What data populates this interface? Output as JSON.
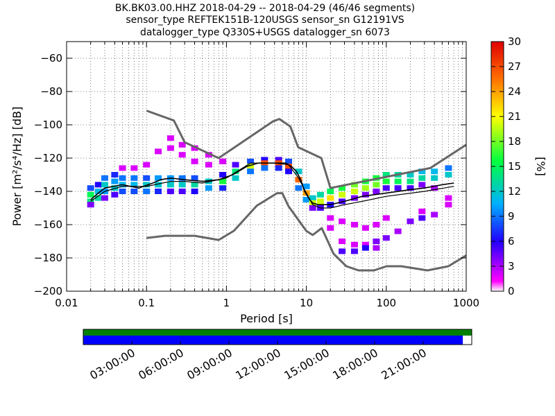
{
  "title": {
    "line1": "BK.BK03.00.HHZ   2018-04-29 -- 2018-04-29  (46/46 segments)",
    "line2": "sensor_type REFTEK151B-120USGS sensor_sn G12191VS",
    "line3": "datalogger_type Q330S+USGS datalogger_sn 6073"
  },
  "chart_data": {
    "type": "heatmap",
    "xlabel": "Period [s]",
    "ylabel": "Power [m²/s⁴/Hz] [dB]",
    "x_scale": "log",
    "xlim": [
      0.01,
      1000
    ],
    "ylim": [
      -200,
      -50
    ],
    "x_ticks": [
      "0.01",
      "0.1",
      "1",
      "10",
      "100",
      "1000"
    ],
    "y_ticks": [
      "−60",
      "−80",
      "−100",
      "−120",
      "−140",
      "−160",
      "−180",
      "−200"
    ],
    "y_tick_values": [
      -60,
      -80,
      -100,
      -120,
      -140,
      -160,
      -180,
      -200
    ],
    "colorbar": {
      "label": "[%]",
      "range": [
        0,
        30
      ],
      "ticks": [
        "0",
        "3",
        "6",
        "9",
        "12",
        "15",
        "18",
        "21",
        "24",
        "27",
        "30"
      ]
    },
    "noise_model_high": {
      "period": [
        0.1,
        0.22,
        0.3,
        0.8,
        3.8,
        4.6,
        6.3,
        7.9,
        15.4,
        20,
        354.8,
        1000
      ],
      "power": [
        -91.5,
        -97.4,
        -110.5,
        -120,
        -98,
        -96.5,
        -101,
        -113.5,
        -120,
        -138,
        -126,
        -112
      ]
    },
    "noise_model_low": {
      "period": [
        0.1,
        0.17,
        0.4,
        0.8,
        1.24,
        2.4,
        4.3,
        5,
        6,
        10,
        12,
        15.6,
        21.9,
        31.6,
        45,
        70,
        101,
        154,
        328,
        600,
        1000
      ],
      "power": [
        -168,
        -166.7,
        -166.7,
        -169.2,
        -163.7,
        -148.6,
        -141.1,
        -141.1,
        -149,
        -163.8,
        -166.2,
        -162.1,
        -177.5,
        -185,
        -187.5,
        -187.5,
        -185,
        -185,
        -187.5,
        -185,
        -178.5
      ]
    },
    "median": {
      "period": [
        0.02,
        0.025,
        0.03,
        0.05,
        0.08,
        0.12,
        0.15,
        0.2,
        0.3,
        0.5,
        0.8,
        1.2,
        1.8,
        2.5,
        3.5,
        4.5,
        5.5,
        6.5,
        7.5,
        8.5,
        9.5,
        11,
        12,
        14,
        16,
        20,
        30,
        50,
        100,
        200,
        300,
        500,
        700
      ],
      "power": [
        -145,
        -141,
        -138,
        -136,
        -138,
        -135,
        -133,
        -132,
        -133,
        -134,
        -133,
        -130,
        -125,
        -123,
        -123,
        -123,
        -123,
        -125,
        -128,
        -133,
        -140,
        -145,
        -147,
        -148,
        -148,
        -148,
        -146,
        -143,
        -141,
        -139,
        -138,
        -136,
        -135
      ]
    },
    "mean": {
      "period": [
        0.02,
        0.03,
        0.05,
        0.1,
        0.2,
        0.3,
        0.5,
        1,
        2,
        4,
        6,
        8,
        10,
        12,
        15,
        20,
        30,
        50,
        100,
        300,
        700
      ],
      "power": [
        -146,
        -140,
        -137,
        -137,
        -134,
        -134,
        -135,
        -132,
        -123,
        -123,
        -124,
        -132,
        -141,
        -148,
        -150,
        -150,
        -148,
        -146,
        -143,
        -140,
        -137
      ]
    },
    "pdf_cells": [
      {
        "period": 0.02,
        "power": [
          [
            -138,
            8
          ],
          [
            -142,
            15
          ],
          [
            -146,
            14
          ],
          [
            -148,
            4
          ]
        ]
      },
      {
        "period": 0.025,
        "power": [
          [
            -136,
            6
          ],
          [
            -140,
            11
          ],
          [
            -144,
            13
          ]
        ]
      },
      {
        "period": 0.03,
        "power": [
          [
            -132,
            9
          ],
          [
            -136,
            12
          ],
          [
            -140,
            10
          ],
          [
            -144,
            4
          ]
        ]
      },
      {
        "period": 0.04,
        "power": [
          [
            -130,
            7
          ],
          [
            -134,
            10
          ],
          [
            -138,
            12
          ],
          [
            -142,
            5
          ]
        ]
      },
      {
        "period": 0.05,
        "power": [
          [
            -126,
            2
          ],
          [
            -132,
            9
          ],
          [
            -136,
            11
          ],
          [
            -140,
            8
          ]
        ]
      },
      {
        "period": 0.07,
        "power": [
          [
            -126,
            2
          ],
          [
            -132,
            9
          ],
          [
            -136,
            11
          ],
          [
            -140,
            8
          ]
        ]
      },
      {
        "period": 0.1,
        "power": [
          [
            -124,
            2
          ],
          [
            -132,
            8
          ],
          [
            -136,
            12
          ],
          [
            -140,
            9
          ]
        ]
      },
      {
        "period": 0.14,
        "power": [
          [
            -116,
            2
          ],
          [
            -132,
            10
          ],
          [
            -136,
            12
          ],
          [
            -140,
            7
          ]
        ]
      },
      {
        "period": 0.2,
        "power": [
          [
            -108,
            2
          ],
          [
            -114,
            2
          ],
          [
            -132,
            10
          ],
          [
            -136,
            12
          ],
          [
            -140,
            5
          ]
        ]
      },
      {
        "period": 0.28,
        "power": [
          [
            -112,
            2
          ],
          [
            -118,
            2
          ],
          [
            -132,
            9
          ],
          [
            -136,
            12
          ],
          [
            -140,
            5
          ]
        ]
      },
      {
        "period": 0.4,
        "power": [
          [
            -114,
            2
          ],
          [
            -122,
            2
          ],
          [
            -132,
            8
          ],
          [
            -136,
            13
          ],
          [
            -140,
            6
          ]
        ]
      },
      {
        "period": 0.6,
        "power": [
          [
            -118,
            2
          ],
          [
            -124,
            2
          ],
          [
            -134,
            12
          ],
          [
            -138,
            10
          ]
        ]
      },
      {
        "period": 0.9,
        "power": [
          [
            -122,
            2
          ],
          [
            -130,
            6
          ],
          [
            -134,
            16
          ],
          [
            -138,
            7
          ]
        ]
      },
      {
        "period": 1.3,
        "power": [
          [
            -124,
            5
          ],
          [
            -128,
            14
          ],
          [
            -132,
            12
          ]
        ]
      },
      {
        "period": 2,
        "power": [
          [
            -122,
            8
          ],
          [
            -125,
            20
          ],
          [
            -128,
            9
          ]
        ]
      },
      {
        "period": 3,
        "power": [
          [
            -121,
            6
          ],
          [
            -123,
            27
          ],
          [
            -126,
            9
          ]
        ]
      },
      {
        "period": 4.5,
        "power": [
          [
            -121,
            5
          ],
          [
            -123,
            27
          ],
          [
            -126,
            7
          ]
        ]
      },
      {
        "period": 6,
        "power": [
          [
            -122,
            8
          ],
          [
            -125,
            27
          ],
          [
            -128,
            6
          ]
        ]
      },
      {
        "period": 8,
        "power": [
          [
            -128,
            12
          ],
          [
            -133,
            26
          ],
          [
            -138,
            9
          ]
        ]
      },
      {
        "period": 10,
        "power": [
          [
            -137,
            10
          ],
          [
            -141,
            24
          ],
          [
            -145,
            10
          ]
        ]
      },
      {
        "period": 12,
        "power": [
          [
            -144,
            12
          ],
          [
            -147,
            20
          ],
          [
            -150,
            4
          ]
        ]
      },
      {
        "period": 15,
        "power": [
          [
            -142,
            13
          ],
          [
            -146,
            20
          ],
          [
            -150,
            5
          ]
        ]
      },
      {
        "period": 20,
        "power": [
          [
            -140,
            15
          ],
          [
            -144,
            22
          ],
          [
            -148,
            6
          ],
          [
            -156,
            2
          ],
          [
            -162,
            2
          ]
        ]
      },
      {
        "period": 28,
        "power": [
          [
            -138,
            16
          ],
          [
            -142,
            20
          ],
          [
            -146,
            5
          ],
          [
            -158,
            2
          ],
          [
            -170,
            2
          ],
          [
            -176,
            5
          ]
        ]
      },
      {
        "period": 40,
        "power": [
          [
            -136,
            18
          ],
          [
            -140,
            20
          ],
          [
            -144,
            4
          ],
          [
            -160,
            2
          ],
          [
            -172,
            2
          ],
          [
            -176,
            5
          ]
        ]
      },
      {
        "period": 55,
        "power": [
          [
            -134,
            16
          ],
          [
            -138,
            19
          ],
          [
            -142,
            4
          ],
          [
            -162,
            2
          ],
          [
            -172,
            2
          ],
          [
            -174,
            6
          ]
        ]
      },
      {
        "period": 75,
        "power": [
          [
            -132,
            16
          ],
          [
            -136,
            18
          ],
          [
            -140,
            4
          ],
          [
            -160,
            2
          ],
          [
            -170,
            4
          ],
          [
            -174,
            3
          ]
        ]
      },
      {
        "period": 100,
        "power": [
          [
            -130,
            14
          ],
          [
            -134,
            16
          ],
          [
            -138,
            5
          ],
          [
            -156,
            2
          ],
          [
            -168,
            4
          ]
        ]
      },
      {
        "period": 140,
        "power": [
          [
            -130,
            13
          ],
          [
            -134,
            15
          ],
          [
            -138,
            5
          ],
          [
            -164,
            3
          ]
        ]
      },
      {
        "period": 200,
        "power": [
          [
            -130,
            12
          ],
          [
            -134,
            14
          ],
          [
            -138,
            5
          ],
          [
            -158,
            4
          ]
        ]
      },
      {
        "period": 280,
        "power": [
          [
            -128,
            11
          ],
          [
            -132,
            13
          ],
          [
            -136,
            4
          ],
          [
            -152,
            2
          ],
          [
            -156,
            5
          ]
        ]
      },
      {
        "period": 400,
        "power": [
          [
            -128,
            11
          ],
          [
            -132,
            12
          ],
          [
            -138,
            3
          ],
          [
            -154,
            3
          ]
        ]
      },
      {
        "period": 600,
        "power": [
          [
            -126,
            9
          ],
          [
            -130,
            12
          ],
          [
            -144,
            2
          ],
          [
            -148,
            2
          ]
        ]
      }
    ]
  },
  "timeline": {
    "labels": [
      "03:00:00",
      "06:00:00",
      "09:00:00",
      "12:00:00",
      "15:00:00",
      "18:00:00",
      "21:00:00"
    ],
    "coverage": {
      "data_fraction": 1.0,
      "gap_free_fraction": 0.977
    },
    "colors": {
      "data": "#008000",
      "gap_free": "#0000ff"
    }
  },
  "colors": {
    "noise_model": "#666666",
    "median": "#000000",
    "mean": "#000000",
    "grid": "#555555"
  }
}
